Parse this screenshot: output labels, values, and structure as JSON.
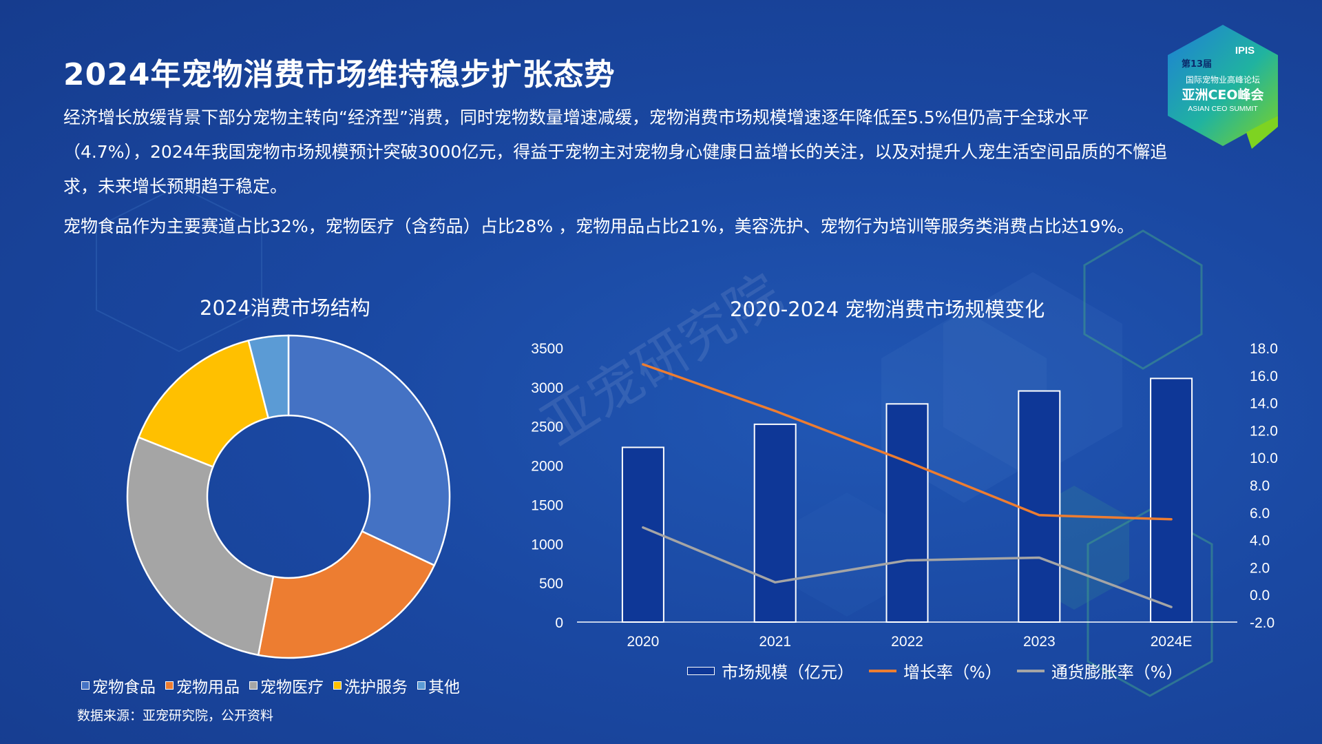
{
  "page": {
    "title": "2024年宠物消费市场维持稳步扩张态势",
    "paragraph1": "经济增长放缓背景下部分宠物主转向“经济型”消费，同时宠物数量增速减缓，宠物消费市场规模增速逐年降低至5.5%但仍高于全球水平（4.7%），2024年我国宠物市场规模预计突破3000亿元，得益于宠物主对宠物身心健康日益增长的关注，以及对提升人宠生活空间品质的不懈追求，未来增长预期趋于稳定。",
    "paragraph2": "宠物食品作为主要赛道占比32%，宠物医疗（含药品）占比28% ，宠物用品占比21%，美容洗护、宠物行为培训等服务类消费占比达19%。",
    "source": "数据来源：亚宠研究院，公开资料",
    "watermark": "亚宠研究院"
  },
  "logo": {
    "edition": "第13届",
    "abbr": "IPIS",
    "forum": "国际宠物业高峰论坛",
    "summit_cn": "亚洲CEO峰会",
    "summit_en": "ASIAN CEO SUMMIT"
  },
  "chart_data": [
    {
      "type": "pie",
      "title": "2024消费市场结构",
      "donut": true,
      "legend": "bottom",
      "slices": [
        {
          "label": "宠物食品",
          "value": 32,
          "color": "#4472c4"
        },
        {
          "label": "宠物用品",
          "value": 21,
          "color": "#ed7d31"
        },
        {
          "label": "宠物医疗",
          "value": 28,
          "color": "#a5a5a5"
        },
        {
          "label": "洗护服务",
          "value": 15,
          "color": "#ffc000"
        },
        {
          "label": "其他",
          "value": 4,
          "color": "#5b9bd5"
        }
      ]
    },
    {
      "type": "bar",
      "title": "2020-2024 宠物消费市场规模变化",
      "categories": [
        "2020",
        "2021",
        "2022",
        "2023",
        "2024E"
      ],
      "legend": "bottom",
      "grid": false,
      "ylim": [
        0,
        3500
      ],
      "yticks": [
        "0",
        "500",
        "1000",
        "1500",
        "2000",
        "2500",
        "3000",
        "3500"
      ],
      "y2lim": [
        -2,
        18
      ],
      "y2ticks": [
        "-2.0",
        "0.0",
        "2.0",
        "4.0",
        "6.0",
        "8.0",
        "10.0",
        "12.0",
        "14.0",
        "16.0",
        "18.0"
      ],
      "series": [
        {
          "name": "市场规模（亿元）",
          "type": "bar",
          "axis": "left",
          "color": "#0e3797",
          "values": [
            2230,
            2525,
            2785,
            2950,
            3110
          ]
        },
        {
          "name": "增长率（%）",
          "type": "line",
          "axis": "right",
          "color": "#ed7d31",
          "values": [
            16.8,
            13.4,
            9.7,
            5.8,
            5.5
          ]
        },
        {
          "name": "通货膨胀率（%）",
          "type": "line",
          "axis": "right",
          "color": "#a5a5a5",
          "values": [
            4.9,
            0.9,
            2.5,
            2.7,
            -0.9
          ]
        }
      ]
    }
  ]
}
